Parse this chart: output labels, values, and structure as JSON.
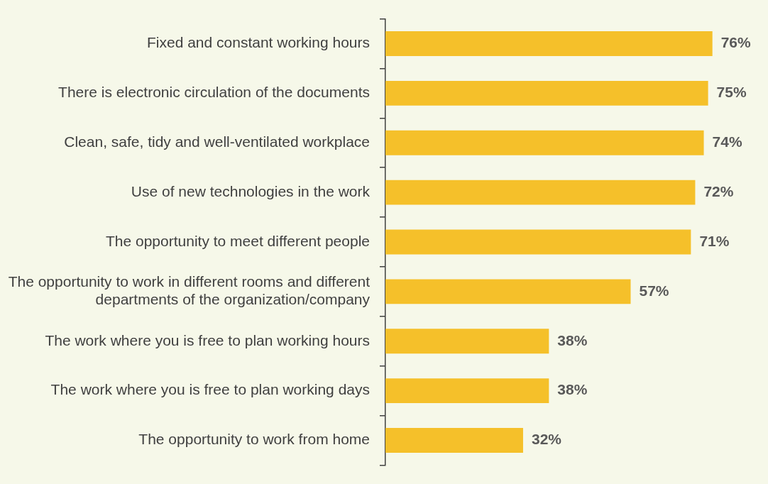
{
  "chart_data": {
    "type": "bar",
    "orientation": "horizontal",
    "categories": [
      "Fixed and constant working hours",
      "There is electronic circulation of the documents",
      "Clean, safe, tidy and well-ventilated workplace",
      "Use of new technologies in the work",
      "The opportunity to meet different people",
      "The opportunity to work in different rooms and different departments of the organization/company",
      "The work where you is free to plan working hours",
      "The work where you is free to plan working days",
      "The opportunity to work from home"
    ],
    "values": [
      76,
      75,
      74,
      72,
      71,
      57,
      38,
      38,
      32
    ],
    "value_labels": [
      "76%",
      "75%",
      "74%",
      "72%",
      "71%",
      "57%",
      "38%",
      "38%",
      "32%"
    ],
    "color": "#f5c02a"
  }
}
